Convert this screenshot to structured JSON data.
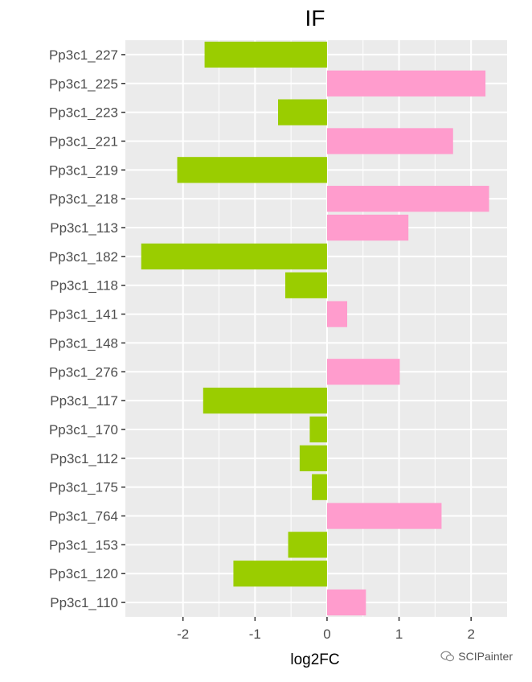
{
  "chart_data": {
    "type": "bar",
    "orientation": "horizontal",
    "title": "IF",
    "xlabel": "log2FC",
    "ylabel": "",
    "xlim": [
      -2.8,
      2.5
    ],
    "x_ticks": [
      -2,
      -1,
      0,
      1,
      2
    ],
    "x_tick_labels": [
      "-2",
      "-1",
      "0",
      "1",
      "2"
    ],
    "categories": [
      "Pp3c1_227",
      "Pp3c1_225",
      "Pp3c1_223",
      "Pp3c1_221",
      "Pp3c1_219",
      "Pp3c1_218",
      "Pp3c1_113",
      "Pp3c1_182",
      "Pp3c1_118",
      "Pp3c1_141",
      "Pp3c1_148",
      "Pp3c1_276",
      "Pp3c1_117",
      "Pp3c1_170",
      "Pp3c1_112",
      "Pp3c1_175",
      "Pp3c1_764",
      "Pp3c1_153",
      "Pp3c1_120",
      "Pp3c1_110"
    ],
    "values": [
      -1.7,
      2.2,
      -0.68,
      1.75,
      -2.08,
      2.25,
      1.13,
      -2.58,
      -0.58,
      0.28,
      0.0,
      1.01,
      -1.72,
      -0.24,
      -0.38,
      -0.21,
      1.59,
      -0.54,
      -1.3,
      0.54
    ],
    "colors": {
      "negative": "#9acd00",
      "positive": "#ff9ccd",
      "panel_background": "#ebebeb",
      "grid": "#ffffff",
      "tick_text": "#4d4d4d"
    },
    "grid": true,
    "legend": "none"
  },
  "watermark": {
    "text": "SCIPainter",
    "icon": "wechat-icon"
  }
}
